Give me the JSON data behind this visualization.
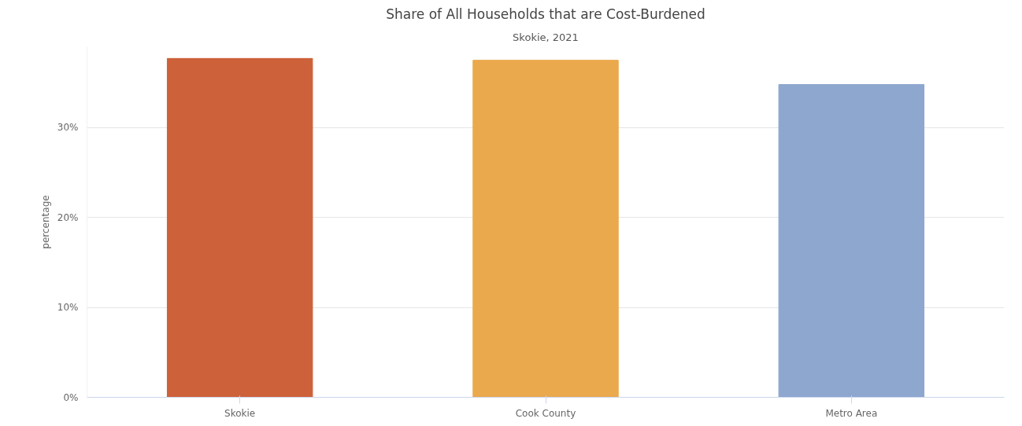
{
  "chart_data": {
    "type": "bar",
    "title": "Share of All Households that are Cost-Burdened",
    "subtitle": "Skokie, 2021",
    "ylabel": "percentage",
    "categories": [
      "Skokie",
      "Cook County",
      "Metro Area"
    ],
    "values": [
      37.7,
      37.5,
      34.8
    ],
    "colors": [
      "#cd613a",
      "#eba94d",
      "#8ea7cf"
    ],
    "yticks": [
      {
        "value": 0,
        "label": "0%"
      },
      {
        "value": 10,
        "label": "10%"
      },
      {
        "value": 20,
        "label": "20%"
      },
      {
        "value": 30,
        "label": "30%"
      }
    ],
    "ylim": [
      0,
      39
    ],
    "grid": "y"
  }
}
